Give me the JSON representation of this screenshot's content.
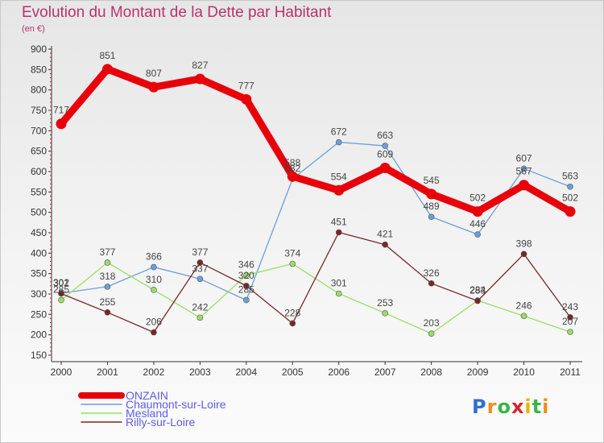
{
  "chart_data": {
    "type": "line",
    "title": "Evolution du Montant de la Dette par Habitant",
    "subtitle": "(en €)",
    "categories": [
      "2000",
      "2001",
      "2002",
      "2003",
      "2004",
      "2005",
      "2006",
      "2007",
      "2008",
      "2009",
      "2010",
      "2011"
    ],
    "ylim": [
      150,
      900
    ],
    "yticks": [
      150,
      200,
      250,
      300,
      350,
      400,
      450,
      500,
      550,
      600,
      650,
      700,
      750,
      800,
      850,
      900
    ],
    "grid": false,
    "legend_position": "bottom-left",
    "series": [
      {
        "name": "ONZAIN",
        "color": "#e8000a",
        "emphasis": true,
        "values": [
          717,
          851,
          807,
          827,
          777,
          588,
          554,
          609,
          545,
          502,
          567,
          502
        ]
      },
      {
        "name": "Chaumont-sur-Loire",
        "color": "#6aa0d8",
        "emphasis": false,
        "values": [
          302,
          318,
          366,
          337,
          285,
          582,
          672,
          663,
          489,
          446,
          607,
          563
        ]
      },
      {
        "name": "Mesland",
        "color": "#99dd66",
        "emphasis": false,
        "values": [
          285,
          377,
          310,
          242,
          346,
          374,
          301,
          253,
          203,
          284,
          246,
          207
        ]
      },
      {
        "name": "Rilly-sur-Loire",
        "color": "#7a2626",
        "emphasis": false,
        "values": [
          301,
          255,
          206,
          377,
          320,
          228,
          451,
          421,
          326,
          283,
          398,
          243
        ]
      }
    ]
  },
  "logo": {
    "text": "Proxiti",
    "letters": [
      "P",
      "r",
      "o",
      "x",
      "i",
      "t",
      "i"
    ]
  }
}
